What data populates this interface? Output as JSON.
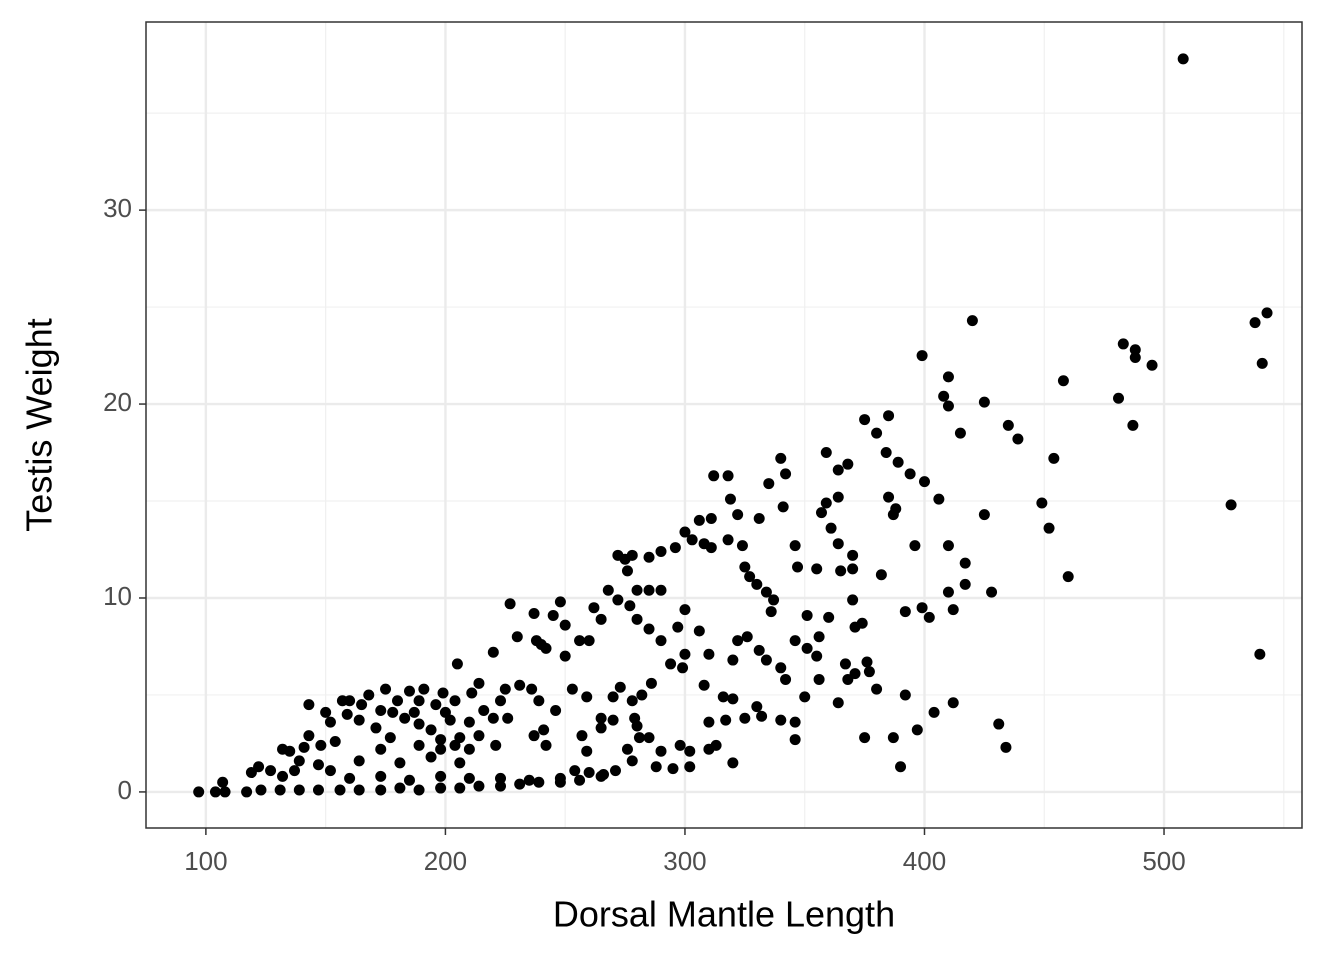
{
  "chart_data": {
    "type": "scatter",
    "x_label": "Dorsal Mantle Length",
    "y_label": "Testis Weight",
    "xlim": [
      75,
      557.6
    ],
    "ylim": [
      -1.86,
      39.7
    ],
    "xticks": [
      100,
      200,
      300,
      400,
      500
    ],
    "yticks": [
      0,
      10,
      20,
      30
    ],
    "grid": true,
    "minor_grid": true,
    "color": "#000000",
    "series": [
      {
        "x": [
          508,
          543,
          538,
          541,
          528,
          540,
          483,
          488,
          488,
          495,
          481,
          487,
          458,
          454,
          460,
          449,
          452,
          420,
          399,
          410,
          408,
          410,
          425,
          415,
          435,
          439,
          425,
          406,
          400,
          394,
          389,
          396,
          410,
          417,
          417,
          410,
          428,
          412,
          399,
          402,
          392,
          412,
          404,
          397,
          392,
          431,
          434,
          390,
          387,
          375,
          375,
          385,
          380,
          384,
          385,
          388,
          387,
          382,
          380,
          359,
          368,
          364,
          340,
          342,
          335,
          341,
          364,
          359,
          357,
          361,
          364,
          346,
          370,
          365,
          370,
          355,
          347,
          312,
          318,
          319,
          331,
          322,
          306,
          311,
          300,
          303,
          308,
          311,
          318,
          324,
          296,
          290,
          285,
          278,
          272,
          275,
          276,
          325,
          327,
          330,
          334,
          337,
          336,
          370,
          374,
          371,
          360,
          351,
          356,
          346,
          351,
          322,
          326,
          331,
          334,
          340,
          342,
          355,
          367,
          371,
          376,
          377,
          356,
          350,
          364,
          368,
          330,
          332,
          340,
          346,
          346,
          320,
          310,
          313,
          302,
          298,
          302,
          295,
          290,
          288,
          285,
          281,
          280,
          276,
          278,
          310,
          317,
          325,
          308,
          316,
          320,
          310,
          320,
          306,
          300,
          297,
          290,
          300,
          299,
          294,
          286,
          282,
          279,
          278,
          273,
          270,
          270,
          265,
          257,
          259,
          265,
          259,
          253,
          246,
          241,
          242,
          237,
          236,
          239,
          231,
          225,
          223,
          226,
          220,
          216,
          221,
          227,
          237,
          248,
          245,
          238,
          240,
          242,
          250,
          250,
          256,
          260,
          262,
          265,
          268,
          272,
          277,
          280,
          285,
          290,
          280,
          285,
          230,
          220,
          205,
          214,
          211,
          204,
          199,
          191,
          185,
          180,
          178,
          183,
          189,
          194,
          198,
          202,
          206,
          210,
          177,
          171,
          164,
          159,
          165,
          150,
          152,
          154,
          148,
          143,
          141,
          135,
          132,
          139,
          147,
          137,
          132,
          127,
          122,
          119,
          107,
          97,
          104,
          108,
          117,
          123,
          131,
          139,
          147,
          156,
          164,
          173,
          181,
          189,
          198,
          206,
          214,
          223,
          231,
          239,
          248,
          256,
          265,
          271,
          160,
          173,
          185,
          198,
          210,
          223,
          164,
          181,
          194,
          206,
          189,
          173,
          152,
          235,
          248,
          254,
          260,
          266,
          189,
          196,
          200,
          187,
          175,
          168,
          160,
          198,
          204,
          210,
          214,
          143,
          157,
          173
        ],
        "values": [
          37.8,
          24.7,
          24.2,
          22.1,
          14.8,
          7.1,
          23.1,
          22.8,
          22.4,
          22.0,
          20.3,
          18.9,
          21.2,
          17.2,
          11.1,
          14.9,
          13.6,
          24.3,
          22.5,
          21.4,
          20.4,
          19.9,
          20.1,
          18.5,
          18.9,
          18.2,
          14.3,
          15.1,
          16.0,
          16.4,
          17.0,
          12.7,
          12.7,
          11.8,
          10.7,
          10.3,
          10.3,
          9.4,
          9.5,
          9.0,
          9.3,
          4.6,
          4.1,
          3.2,
          5.0,
          3.5,
          2.3,
          1.3,
          2.8,
          2.8,
          19.2,
          19.4,
          18.5,
          17.5,
          15.2,
          14.6,
          14.3,
          11.2,
          5.3,
          17.5,
          16.9,
          16.6,
          17.2,
          16.4,
          15.9,
          14.7,
          15.2,
          14.9,
          14.4,
          13.6,
          12.8,
          12.7,
          12.2,
          11.4,
          11.5,
          11.5,
          11.6,
          16.3,
          16.3,
          15.1,
          14.1,
          14.3,
          14.0,
          14.1,
          13.4,
          13.0,
          12.8,
          12.6,
          13.0,
          12.7,
          12.6,
          12.4,
          12.1,
          12.2,
          12.2,
          12.0,
          11.4,
          11.6,
          11.1,
          10.7,
          10.3,
          9.9,
          9.3,
          9.9,
          8.7,
          8.5,
          9.0,
          9.1,
          8.0,
          7.8,
          7.4,
          7.8,
          8.0,
          7.3,
          6.8,
          6.4,
          5.8,
          7.0,
          6.6,
          6.1,
          6.7,
          6.2,
          5.8,
          4.9,
          4.6,
          5.8,
          4.4,
          3.9,
          3.7,
          3.6,
          2.7,
          1.5,
          2.2,
          2.4,
          2.1,
          2.4,
          1.3,
          1.2,
          2.1,
          1.3,
          2.8,
          2.8,
          3.4,
          2.2,
          1.6,
          3.6,
          3.7,
          3.8,
          5.5,
          4.9,
          4.8,
          7.1,
          6.8,
          8.3,
          9.4,
          8.5,
          7.8,
          7.1,
          6.4,
          6.6,
          5.6,
          5.0,
          3.8,
          4.7,
          5.4,
          4.9,
          3.7,
          3.3,
          2.9,
          2.1,
          3.8,
          4.9,
          5.3,
          4.2,
          3.2,
          2.4,
          2.9,
          5.3,
          4.7,
          5.5,
          5.3,
          4.7,
          3.8,
          3.8,
          4.2,
          2.4,
          9.7,
          9.2,
          9.8,
          9.1,
          7.8,
          7.6,
          7.4,
          8.6,
          7.0,
          7.8,
          7.8,
          9.5,
          8.9,
          10.4,
          9.9,
          9.6,
          10.4,
          10.4,
          10.4,
          8.9,
          8.4,
          8.0,
          7.2,
          6.6,
          5.6,
          5.1,
          4.7,
          5.1,
          5.3,
          5.2,
          4.7,
          4.1,
          3.8,
          3.5,
          3.2,
          2.7,
          3.7,
          2.8,
          3.6,
          2.8,
          3.3,
          3.7,
          4.0,
          4.5,
          4.1,
          3.6,
          2.6,
          2.4,
          2.9,
          2.3,
          2.1,
          2.2,
          1.6,
          1.4,
          1.1,
          0.8,
          1.1,
          1.3,
          1.0,
          0.5,
          0.0,
          0.0,
          0.0,
          0.0,
          0.1,
          0.1,
          0.1,
          0.1,
          0.1,
          0.1,
          0.1,
          0.2,
          0.1,
          0.2,
          0.2,
          0.3,
          0.3,
          0.4,
          0.5,
          0.5,
          0.6,
          0.8,
          1.1,
          0.7,
          0.8,
          0.6,
          0.8,
          0.7,
          0.7,
          1.6,
          1.5,
          1.8,
          1.5,
          2.4,
          2.2,
          1.1,
          0.6,
          0.7,
          1.1,
          1.0,
          0.9,
          4.7,
          4.5,
          4.1,
          4.1,
          5.3,
          5.0,
          4.7,
          2.2,
          2.4,
          2.2,
          2.9,
          4.5,
          4.7,
          4.2
        ]
      }
    ]
  }
}
